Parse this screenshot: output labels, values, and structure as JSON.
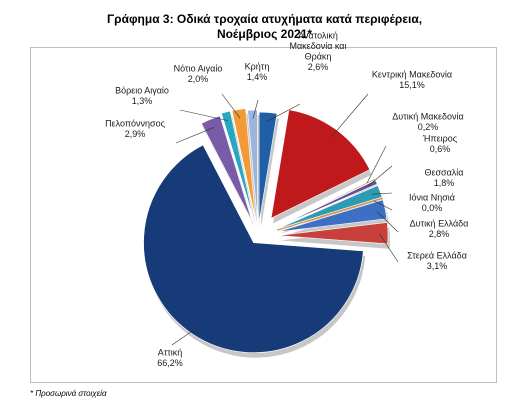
{
  "chart_data": {
    "type": "pie",
    "title_line1": "Γράφημα 3: Οδικά τροχαία ατυχήματα κατά περιφέρεια,",
    "title_line2": "Νοέμβριος 2021*",
    "footnote": "* Προσωρινά στοιχεία",
    "legend": "none",
    "slices": [
      {
        "label": "Ανατολική Μακεδονία και Θράκη",
        "label_lines": [
          "Ανατολική",
          "Μακεδονία και",
          "Θράκη"
        ],
        "value_text": "2,6%",
        "value": 2.6,
        "color": "#1f5fa7"
      },
      {
        "label": "Κεντρική Μακεδονία",
        "label_lines": [
          "Κεντρική Μακεδονία"
        ],
        "value_text": "15,1%",
        "value": 15.1,
        "color": "#c0191c"
      },
      {
        "label": "Δυτική Μακεδονία",
        "label_lines": [
          "Δυτική Μακεδονία"
        ],
        "value_text": "0,2%",
        "value": 0.2,
        "color": "#7da34a"
      },
      {
        "label": "Ήπειρος",
        "label_lines": [
          "Ήπειρος"
        ],
        "value_text": "0,6%",
        "value": 0.6,
        "color": "#6c4a9b"
      },
      {
        "label": "Θεσσαλία",
        "label_lines": [
          "Θεσσαλία"
        ],
        "value_text": "1,8%",
        "value": 1.8,
        "color": "#2d9bb4"
      },
      {
        "label": "Ιόνια Νησιά",
        "label_lines": [
          "Ιόνια Νησιά"
        ],
        "value_text": "0,0%",
        "value": 0.0,
        "color": "#e8892b"
      },
      {
        "label": "Δυτική Ελλάδα",
        "label_lines": [
          "Δυτική Ελλάδα"
        ],
        "value_text": "2,8%",
        "value": 2.8,
        "color": "#3d6fc4"
      },
      {
        "label": "Στερεά Ελλάδα",
        "label_lines": [
          "Στερεά Ελλάδα"
        ],
        "value_text": "3,1%",
        "value": 3.1,
        "color": "#c8403c"
      },
      {
        "label": "Αττική",
        "label_lines": [
          "Αττική"
        ],
        "value_text": "66,2%",
        "value": 66.2,
        "color": "#173a78"
      },
      {
        "label": "Πελοπόννησος",
        "label_lines": [
          "Πελοπόννησος"
        ],
        "value_text": "2,9%",
        "value": 2.9,
        "color": "#7a5ba8"
      },
      {
        "label": "Βόρειο Αιγαίο",
        "label_lines": [
          "Βόρειο Αιγαίο"
        ],
        "value_text": "1,3%",
        "value": 1.3,
        "color": "#2aa6c0"
      },
      {
        "label": "Νότιο Αιγαίο",
        "label_lines": [
          "Νότιο Αιγαίο"
        ],
        "value_text": "2,0%",
        "value": 2.0,
        "color": "#f29a38"
      },
      {
        "label": "Κρήτη",
        "label_lines": [
          "Κρήτη"
        ],
        "value_text": "1,4%",
        "value": 1.4,
        "color": "#9db4dc"
      }
    ]
  }
}
